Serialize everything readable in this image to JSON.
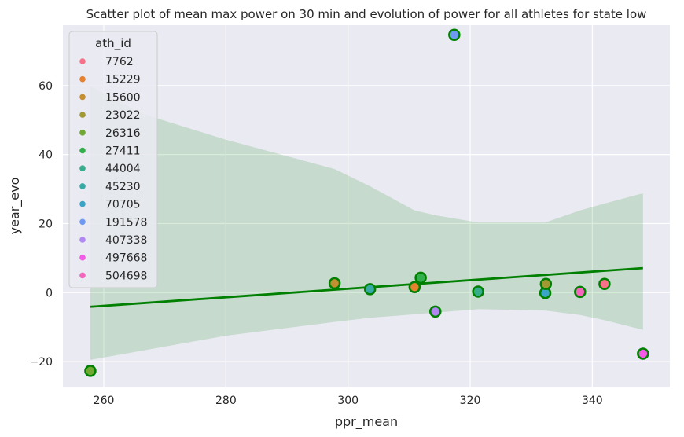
{
  "chart_data": {
    "type": "scatter",
    "title": "Scatter plot of mean max power on 30 min and evolution of power for all athletes for state low",
    "xlabel": "ppr_mean",
    "ylabel": "year_evo",
    "xlim": [
      253.3,
      352.7
    ],
    "ylim": [
      -27.5,
      77.5
    ],
    "x_ticks": [
      260,
      280,
      300,
      320,
      340
    ],
    "y_ticks": [
      -20,
      0,
      20,
      40,
      60
    ],
    "x_tick_labels": [
      "260",
      "280",
      "300",
      "320",
      "340"
    ],
    "y_tick_labels": [
      "−20",
      "0",
      "20",
      "40",
      "60"
    ],
    "grid": true,
    "background": "#eaeaf2",
    "legend": {
      "title": "ath_id",
      "placement": "top-left",
      "entries": [
        {
          "label": "7762",
          "color": "#f77189"
        },
        {
          "label": "15229",
          "color": "#e5812f"
        },
        {
          "label": "15600",
          "color": "#c48f31"
        },
        {
          "label": "23022",
          "color": "#a29932"
        },
        {
          "label": "26316",
          "color": "#6fa832"
        },
        {
          "label": "27411",
          "color": "#33b04c"
        },
        {
          "label": "44004",
          "color": "#35ad8b"
        },
        {
          "label": "45230",
          "color": "#37aaa6"
        },
        {
          "label": "70705",
          "color": "#3aa5c5"
        },
        {
          "label": "191578",
          "color": "#6e9af4"
        },
        {
          "label": "407338",
          "color": "#b287f4"
        },
        {
          "label": "497668",
          "color": "#f45ae6"
        },
        {
          "label": "504698",
          "color": "#f565bd"
        }
      ]
    },
    "points": [
      {
        "x": 257.8,
        "y": -22.7,
        "ath_id": "26316"
      },
      {
        "x": 297.8,
        "y": 2.7,
        "ath_id": "15600"
      },
      {
        "x": 303.6,
        "y": 1.0,
        "ath_id": "45230"
      },
      {
        "x": 310.9,
        "y": 1.6,
        "ath_id": "15229"
      },
      {
        "x": 311.9,
        "y": 4.3,
        "ath_id": "27411"
      },
      {
        "x": 314.3,
        "y": -5.5,
        "ath_id": "407338"
      },
      {
        "x": 317.4,
        "y": 74.7,
        "ath_id": "191578"
      },
      {
        "x": 321.3,
        "y": 0.3,
        "ath_id": "44004"
      },
      {
        "x": 332.3,
        "y": -0.1,
        "ath_id": "70705"
      },
      {
        "x": 332.4,
        "y": 2.5,
        "ath_id": "23022"
      },
      {
        "x": 338.0,
        "y": 0.2,
        "ath_id": "504698"
      },
      {
        "x": 342.0,
        "y": 2.5,
        "ath_id": "7762"
      },
      {
        "x": 348.3,
        "y": -17.7,
        "ath_id": "497668"
      }
    ],
    "regression": {
      "color": "#008000",
      "line": [
        [
          257.8,
          -4.1
        ],
        [
          348.3,
          7.1
        ]
      ],
      "ci_upper": [
        [
          257.8,
          59.8
        ],
        [
          266,
          52
        ],
        [
          280,
          44.3
        ],
        [
          297.8,
          35.8
        ],
        [
          303.6,
          30.8
        ],
        [
          310.9,
          23.8
        ],
        [
          314.3,
          22.4
        ],
        [
          321.3,
          20.3
        ],
        [
          332.3,
          20.3
        ],
        [
          338.0,
          23.8
        ],
        [
          342.0,
          25.8
        ],
        [
          348.3,
          28.8
        ]
      ],
      "ci_lower": [
        [
          257.8,
          -19.5
        ],
        [
          280,
          -12.5
        ],
        [
          297.8,
          -8.5
        ],
        [
          303.6,
          -7.3
        ],
        [
          310.9,
          -6.3
        ],
        [
          321.3,
          -4.8
        ],
        [
          332.3,
          -5.2
        ],
        [
          338.0,
          -6.5
        ],
        [
          342.0,
          -8.0
        ],
        [
          348.3,
          -10.8
        ]
      ]
    }
  }
}
